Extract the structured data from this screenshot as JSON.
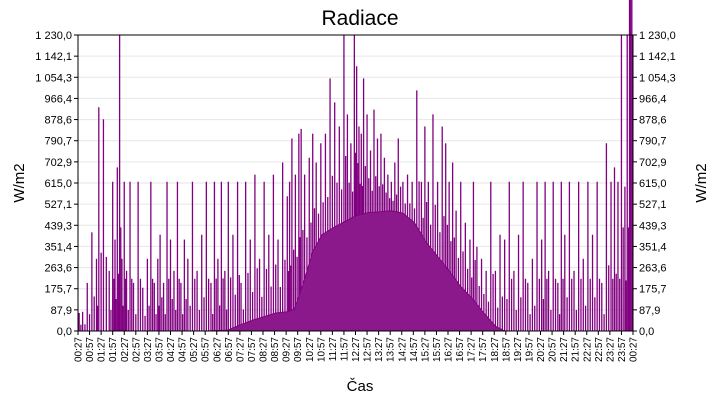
{
  "chart_data": {
    "type": "area",
    "title": "Radiace",
    "xlabel": "Čas",
    "ylabel": "W/m2",
    "ylim": [
      0,
      1230
    ],
    "y_ticks": [
      {
        "value": 0,
        "label": "0,0"
      },
      {
        "value": 87.9,
        "label": "87,9"
      },
      {
        "value": 175.7,
        "label": "175,7"
      },
      {
        "value": 263.6,
        "label": "263,6"
      },
      {
        "value": 351.4,
        "label": "351,4"
      },
      {
        "value": 439.3,
        "label": "439,3"
      },
      {
        "value": 527.1,
        "label": "527,1"
      },
      {
        "value": 615.0,
        "label": "615,0"
      },
      {
        "value": 702.9,
        "label": "702,9"
      },
      {
        "value": 790.7,
        "label": "790,7"
      },
      {
        "value": 878.6,
        "label": "878,6"
      },
      {
        "value": 966.4,
        "label": "966,4"
      },
      {
        "value": 1054.3,
        "label": "1 054,3"
      },
      {
        "value": 1142.1,
        "label": "1 142,1"
      },
      {
        "value": 1230.0,
        "label": "1 230,0"
      }
    ],
    "x_ticks": [
      "00:27",
      "00:57",
      "01:27",
      "01:57",
      "02:27",
      "02:57",
      "03:27",
      "03:57",
      "04:27",
      "04:57",
      "05:27",
      "05:57",
      "06:27",
      "06:57",
      "07:27",
      "07:57",
      "08:27",
      "08:57",
      "09:27",
      "09:57",
      "10:27",
      "10:57",
      "11:27",
      "11:57",
      "12:27",
      "12:57",
      "13:27",
      "13:57",
      "14:27",
      "14:57",
      "15:27",
      "15:57",
      "16:27",
      "16:57",
      "17:27",
      "17:57",
      "18:27",
      "18:57",
      "19:27",
      "19:57",
      "20:27",
      "20:57",
      "21:27",
      "21:57",
      "22:27",
      "22:57",
      "23:27",
      "23:57",
      "00:27"
    ],
    "grid": true,
    "baseline_series": {
      "time_hours": [
        0.45,
        1.5,
        3.0,
        6.0,
        6.9,
        7.45,
        8.0,
        8.5,
        9.0,
        9.5,
        9.8,
        10.2,
        10.6,
        11.0,
        11.5,
        12.0,
        12.5,
        13.0,
        13.5,
        14.0,
        14.5,
        15.0,
        15.5,
        16.0,
        16.5,
        17.0,
        17.5,
        18.0,
        18.5,
        18.9,
        19.5,
        21.0,
        24.45
      ],
      "values": [
        0,
        0,
        0,
        0,
        3,
        25,
        45,
        60,
        75,
        80,
        90,
        200,
        330,
        400,
        430,
        455,
        480,
        492,
        495,
        500,
        490,
        450,
        370,
        310,
        250,
        185,
        135,
        75,
        20,
        0,
        0,
        0,
        0
      ]
    },
    "spike_series": {
      "time_hours": [
        0.5,
        0.65,
        0.85,
        1.05,
        1.25,
        1.35,
        1.55,
        1.8,
        1.95,
        2.05,
        2.15,
        2.25,
        2.35,
        2.45,
        2.55,
        2.7,
        2.85,
        3.05,
        3.25,
        3.45,
        3.6,
        3.75,
        3.9,
        4.0,
        4.15,
        4.3,
        4.45,
        4.6,
        4.75,
        4.9,
        5.05,
        5.2,
        5.4,
        5.6,
        5.8,
        6.0,
        6.2,
        6.35,
        6.5,
        6.65,
        6.8,
        6.95,
        7.15,
        7.35,
        7.5,
        7.7,
        7.9,
        8.1,
        8.3,
        8.5,
        8.7,
        8.9,
        9.1,
        9.3,
        9.5,
        9.6,
        9.7,
        9.85,
        10.0,
        10.1,
        10.25,
        10.45,
        10.6,
        10.75,
        10.95,
        11.15,
        11.35,
        11.55,
        11.75,
        11.95,
        12.1,
        12.25,
        12.4,
        12.5,
        12.6,
        12.7,
        12.8,
        12.95,
        13.1,
        13.25,
        13.4,
        13.55,
        13.7,
        13.85,
        14.0,
        14.15,
        14.3,
        14.5,
        14.7,
        14.9,
        15.1,
        15.3,
        15.45,
        15.6,
        15.8,
        16.0,
        16.2,
        16.35,
        16.5,
        16.65,
        16.8,
        17.0,
        17.2,
        17.4,
        17.55,
        17.7,
        17.9,
        18.1,
        18.3,
        18.5,
        18.7,
        18.9,
        19.1,
        19.3,
        19.5,
        19.7,
        19.9,
        20.1,
        20.3,
        20.5,
        20.65,
        20.8,
        21.0,
        21.2,
        21.35,
        21.5,
        21.7,
        21.9,
        22.1,
        22.3,
        22.5,
        22.7,
        22.9,
        23.1,
        23.3,
        23.5,
        23.65,
        23.8,
        23.95,
        24.1,
        24.2,
        24.3,
        24.4
      ],
      "values": [
        75,
        80,
        200,
        410,
        300,
        930,
        880,
        250,
        620,
        380,
        680,
        1230,
        300,
        620,
        250,
        620,
        200,
        620,
        180,
        300,
        620,
        200,
        300,
        400,
        200,
        620,
        380,
        250,
        620,
        200,
        380,
        300,
        620,
        250,
        400,
        620,
        200,
        620,
        300,
        620,
        250,
        620,
        400,
        620,
        200,
        620,
        380,
        650,
        300,
        620,
        400,
        650,
        380,
        700,
        560,
        620,
        800,
        650,
        820,
        840,
        650,
        720,
        820,
        700,
        780,
        820,
        1050,
        950,
        850,
        1230,
        900,
        780,
        1230,
        1100,
        850,
        820,
        1050,
        900,
        750,
        920,
        800,
        820,
        720,
        650,
        620,
        700,
        800,
        620,
        650,
        620,
        1000,
        620,
        850,
        620,
        900,
        620,
        850,
        780,
        620,
        700,
        500,
        620,
        450,
        380,
        620,
        350,
        300,
        250,
        620,
        250,
        400,
        380,
        620,
        250,
        400,
        620,
        200,
        300,
        620,
        380,
        620,
        250,
        620,
        200,
        620,
        400,
        620,
        250,
        620,
        300,
        620,
        400,
        620,
        200,
        780,
        620,
        680,
        620,
        1230,
        600,
        1230
      ]
    },
    "series_color": "#800080",
    "legend": "none"
  }
}
